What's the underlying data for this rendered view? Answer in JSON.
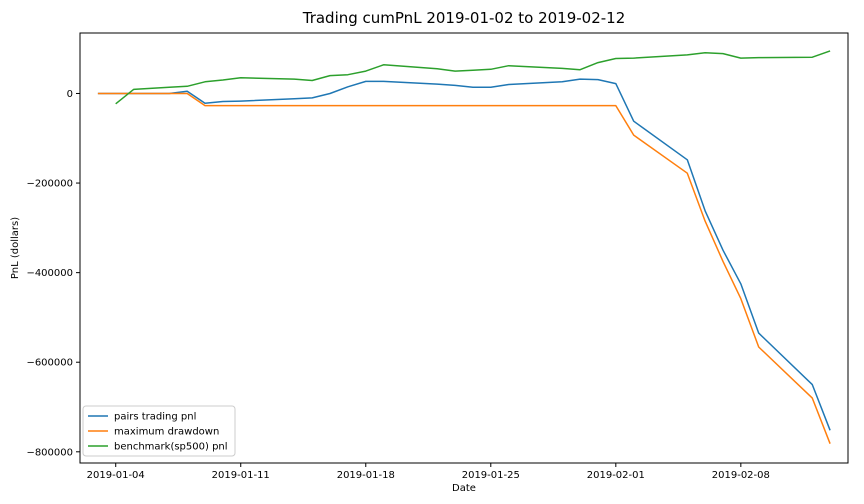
{
  "chart_data": {
    "type": "line",
    "title": "Trading cumPnL 2019-01-02 to 2019-02-12",
    "xlabel": "Date",
    "ylabel": "PnL (dollars)",
    "xlim": [
      "2019-01-02",
      "2019-02-14"
    ],
    "ylim": [
      -825000,
      135000
    ],
    "x_ticks": [
      "2019-01-04",
      "2019-01-11",
      "2019-01-18",
      "2019-01-25",
      "2019-02-01",
      "2019-02-08"
    ],
    "y_ticks": [
      -800000,
      -600000,
      -400000,
      -200000,
      0
    ],
    "y_tick_labels": [
      "−800000",
      "−600000",
      "−400000",
      "−200000",
      "0"
    ],
    "grid": false,
    "legend_position": "bottom-left",
    "series": [
      {
        "name": "pairs trading pnl",
        "color": "#1f77b4",
        "points": [
          [
            "2019-01-03",
            0
          ],
          [
            "2019-01-04",
            0
          ],
          [
            "2019-01-07",
            0
          ],
          [
            "2019-01-08",
            5000
          ],
          [
            "2019-01-09",
            -22000
          ],
          [
            "2019-01-10",
            -18000
          ],
          [
            "2019-01-11",
            -17000
          ],
          [
            "2019-01-14",
            -12000
          ],
          [
            "2019-01-15",
            -10000
          ],
          [
            "2019-01-16",
            0
          ],
          [
            "2019-01-17",
            15000
          ],
          [
            "2019-01-18",
            27000
          ],
          [
            "2019-01-19",
            27000
          ],
          [
            "2019-01-22",
            21000
          ],
          [
            "2019-01-23",
            18000
          ],
          [
            "2019-01-24",
            14000
          ],
          [
            "2019-01-25",
            14000
          ],
          [
            "2019-01-26",
            20000
          ],
          [
            "2019-01-29",
            26000
          ],
          [
            "2019-01-30",
            32000
          ],
          [
            "2019-01-31",
            31000
          ],
          [
            "2019-02-01",
            22000
          ],
          [
            "2019-02-02",
            -62000
          ],
          [
            "2019-02-05",
            -148000
          ],
          [
            "2019-02-06",
            -262000
          ],
          [
            "2019-02-07",
            -350000
          ],
          [
            "2019-02-08",
            -425000
          ],
          [
            "2019-02-09",
            -535000
          ],
          [
            "2019-02-12",
            -650000
          ],
          [
            "2019-02-13",
            -752000
          ]
        ]
      },
      {
        "name": "maximum drawdown",
        "color": "#ff7f0e",
        "points": [
          [
            "2019-01-03",
            0
          ],
          [
            "2019-01-08",
            0
          ],
          [
            "2019-01-09",
            -27000
          ],
          [
            "2019-02-01",
            -27000
          ],
          [
            "2019-02-02",
            -93000
          ],
          [
            "2019-02-05",
            -178000
          ],
          [
            "2019-02-06",
            -285000
          ],
          [
            "2019-02-07",
            -375000
          ],
          [
            "2019-02-08",
            -458000
          ],
          [
            "2019-02-09",
            -566000
          ],
          [
            "2019-02-12",
            -680000
          ],
          [
            "2019-02-13",
            -782000
          ]
        ]
      },
      {
        "name": "benchmark(sp500) pnl",
        "color": "#2ca02c",
        "points": [
          [
            "2019-01-04",
            -23000
          ],
          [
            "2019-01-05",
            9000
          ],
          [
            "2019-01-07",
            14000
          ],
          [
            "2019-01-08",
            16000
          ],
          [
            "2019-01-09",
            26000
          ],
          [
            "2019-01-10",
            30000
          ],
          [
            "2019-01-11",
            35000
          ],
          [
            "2019-01-14",
            32000
          ],
          [
            "2019-01-15",
            29000
          ],
          [
            "2019-01-16",
            40000
          ],
          [
            "2019-01-17",
            42000
          ],
          [
            "2019-01-18",
            50000
          ],
          [
            "2019-01-19",
            64000
          ],
          [
            "2019-01-22",
            55000
          ],
          [
            "2019-01-23",
            50000
          ],
          [
            "2019-01-24",
            52000
          ],
          [
            "2019-01-25",
            54000
          ],
          [
            "2019-01-26",
            62000
          ],
          [
            "2019-01-29",
            56000
          ],
          [
            "2019-01-30",
            53000
          ],
          [
            "2019-01-31",
            69000
          ],
          [
            "2019-02-01",
            78000
          ],
          [
            "2019-02-02",
            79000
          ],
          [
            "2019-02-05",
            86000
          ],
          [
            "2019-02-06",
            91000
          ],
          [
            "2019-02-07",
            89000
          ],
          [
            "2019-02-08",
            79000
          ],
          [
            "2019-02-09",
            80000
          ],
          [
            "2019-02-12",
            81000
          ],
          [
            "2019-02-13",
            95000
          ]
        ]
      }
    ]
  }
}
